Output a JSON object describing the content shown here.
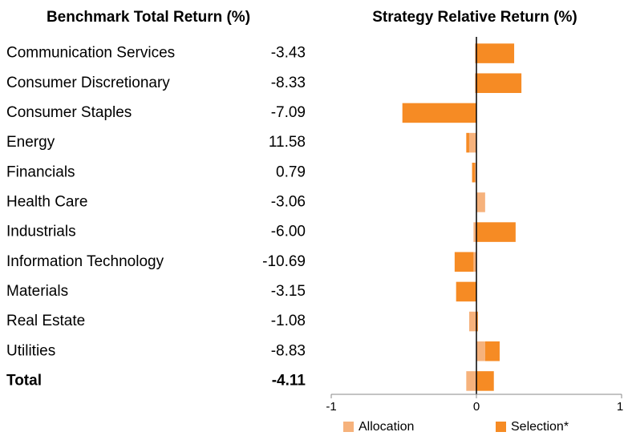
{
  "chart_data": {
    "type": "bar",
    "table_title": "Benchmark Total Return (%)",
    "title": "Strategy Relative Return (%)",
    "categories": [
      "Communication Services",
      "Consumer Discretionary",
      "Consumer Staples",
      "Energy",
      "Financials",
      "Health Care",
      "Industrials",
      "Information Technology",
      "Materials",
      "Real Estate",
      "Utilities",
      "Total"
    ],
    "benchmark": {
      "values": [
        -3.43,
        -8.33,
        -7.09,
        11.58,
        0.79,
        -3.06,
        -6.0,
        -10.69,
        -3.15,
        -1.08,
        -8.83,
        -4.11
      ],
      "value_labels": [
        "-3.43",
        "-8.33",
        "-7.09",
        "11.58",
        "0.79",
        "-3.06",
        "-6.00",
        "-10.69",
        "-3.15",
        "-1.08",
        "-8.83",
        "-4.11"
      ]
    },
    "series": [
      {
        "name": "Allocation",
        "color": "#f6b27c",
        "values": [
          -0.01,
          -0.01,
          0,
          -0.05,
          -0.01,
          0.06,
          -0.02,
          -0.02,
          0,
          -0.05,
          0.06,
          -0.07
        ]
      },
      {
        "name": "Selection*",
        "color": "#f68b24",
        "values": [
          0.26,
          0.31,
          -0.51,
          -0.02,
          -0.02,
          0,
          0.27,
          -0.13,
          -0.14,
          0.01,
          0.1,
          0.12
        ]
      }
    ],
    "stacked": true,
    "orientation": "horizontal",
    "xlim": [
      -1,
      1
    ],
    "xticks": [
      -1,
      0,
      1
    ]
  }
}
